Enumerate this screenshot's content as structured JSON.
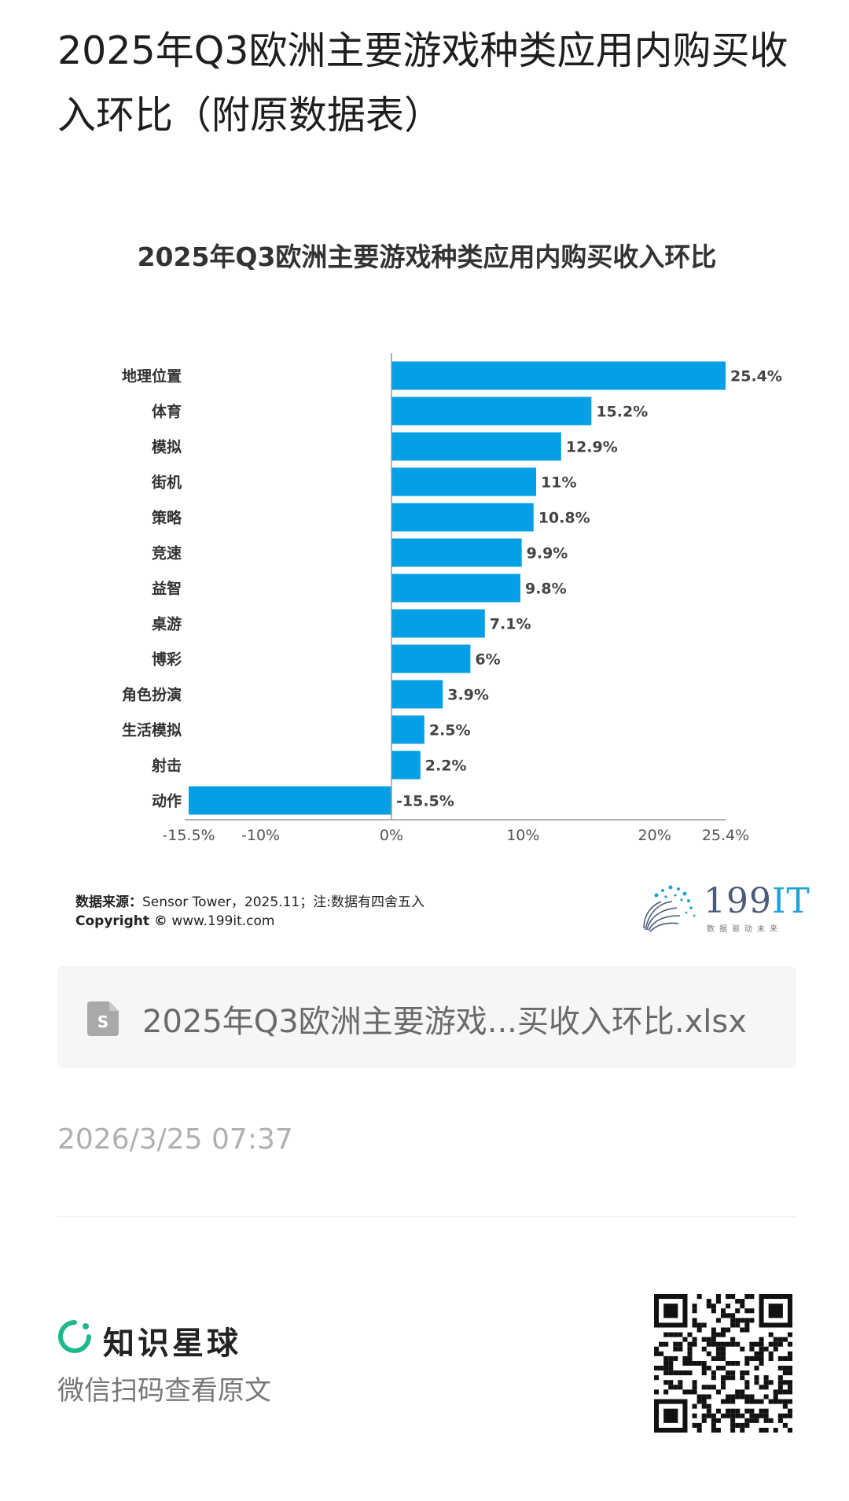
{
  "page": {
    "title": "2025年Q3欧洲主要游戏种类应用内购买收入环比（附原数据表）"
  },
  "chart_data": {
    "type": "bar",
    "orientation": "horizontal",
    "title": "2025年Q3欧洲主要游戏种类应用内购买收入环比",
    "categories": [
      "地理位置",
      "体育",
      "模拟",
      "街机",
      "策略",
      "竞速",
      "益智",
      "桌游",
      "博彩",
      "角色扮演",
      "生活模拟",
      "射击",
      "动作"
    ],
    "values": [
      25.4,
      15.2,
      12.9,
      11,
      10.8,
      9.9,
      9.8,
      7.1,
      6,
      3.9,
      2.5,
      2.2,
      -15.5
    ],
    "value_labels": [
      "25.4%",
      "15.2%",
      "12.9%",
      "11%",
      "10.8%",
      "9.9%",
      "9.8%",
      "7.1%",
      "6%",
      "3.9%",
      "2.5%",
      "2.2%",
      "-15.5%"
    ],
    "xlim": [
      -15.5,
      25.4
    ],
    "xticks": [
      -15.5,
      -10,
      0,
      10,
      20,
      25.4
    ],
    "xtick_labels": [
      "-15.5%",
      "-10%",
      "0%",
      "10%",
      "20%",
      "25.4%"
    ],
    "xlabel": "",
    "ylabel": "",
    "grid": false,
    "bar_color": "#049fe5"
  },
  "footer": {
    "source_label": "数据来源：",
    "source_text": "Sensor Tower，2025.11；注:数据有四舍五入",
    "copyright_label": "Copyright ©",
    "copyright_text": " www.199it.com",
    "logo_number": "199",
    "logo_it": "IT",
    "logo_slogan": "数据驱动未来"
  },
  "attachment": {
    "icon": "spreadsheet-file-icon",
    "file_name": "2025年Q3欧洲主要游戏...买收入环比.xlsx"
  },
  "meta": {
    "timestamp": "2026/3/25 07:37"
  },
  "brand": {
    "icon": "zsxq-logo-icon",
    "name": "知识星球",
    "scan_hint": "微信扫码查看原文"
  },
  "colors": {
    "bar": "#049fe5",
    "brand_green": "#1fb88e",
    "muted_text": "#b0b0b0"
  }
}
